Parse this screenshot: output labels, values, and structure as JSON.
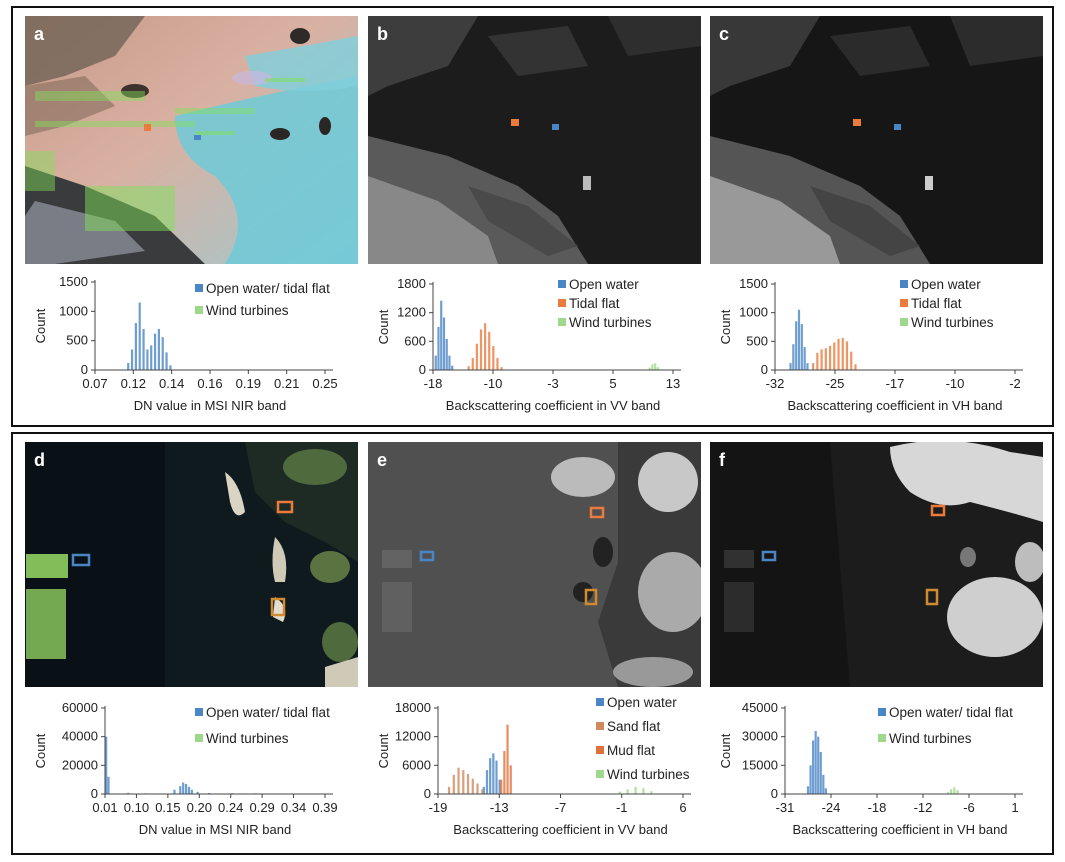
{
  "panels": {
    "a": {
      "letter": "a"
    },
    "b": {
      "letter": "b"
    },
    "c": {
      "letter": "c"
    },
    "d": {
      "letter": "d"
    },
    "e": {
      "letter": "e"
    },
    "f": {
      "letter": "f"
    }
  },
  "colors": {
    "open_water": "#4a86c5",
    "tidal_flat": "#ea7b3c",
    "sand_flat": "#d08a5c",
    "mud_flat": "#e0703a",
    "wind_turbines": "#9fd88a",
    "wind_turbines_dot": "#8fd060"
  },
  "chart_data": [
    {
      "id": "a",
      "type": "bar",
      "xlabel": "DN value in MSI NIR band",
      "ylabel": "Count",
      "xlim": [
        0.07,
        0.25
      ],
      "ylim": [
        0,
        1500
      ],
      "xticks": [
        "0.07",
        "0.12",
        "0.14",
        "0.16",
        "0.19",
        "0.21",
        "0.25"
      ],
      "yticks": [
        "0",
        "500",
        "1000",
        "1500"
      ],
      "series": [
        {
          "name": "Open water/ tidal flat",
          "color": "#4a86c5",
          "x": [
            0.096,
            0.099,
            0.102,
            0.105,
            0.108,
            0.111,
            0.114,
            0.117,
            0.12,
            0.123,
            0.126,
            0.129
          ],
          "values": [
            120,
            350,
            800,
            1150,
            700,
            350,
            420,
            620,
            700,
            560,
            300,
            80
          ]
        },
        {
          "name": "Wind turbines",
          "color": "#9fd88a",
          "x": [],
          "values": []
        }
      ]
    },
    {
      "id": "b",
      "type": "bar",
      "xlabel": "Backscattering coefficient in VV band",
      "ylabel": "Count",
      "xlim": [
        -18,
        17
      ],
      "ylim": [
        0,
        1800
      ],
      "xticks": [
        "-18",
        "-10",
        "-3",
        "5",
        "13"
      ],
      "yticks": [
        "0",
        "600",
        "1200",
        "1800"
      ],
      "series": [
        {
          "name": "Open water",
          "color": "#4a86c5",
          "x": [
            -17.6,
            -17.2,
            -16.8,
            -16.4,
            -16.0,
            -15.6,
            -15.2
          ],
          "values": [
            300,
            900,
            1450,
            1100,
            650,
            300,
            90
          ]
        },
        {
          "name": "Tidal flat",
          "color": "#ea7b3c",
          "x": [
            -12.8,
            -12.2,
            -11.6,
            -11.0,
            -10.4,
            -9.8,
            -9.2,
            -8.6,
            -8.0
          ],
          "values": [
            80,
            250,
            550,
            850,
            980,
            800,
            500,
            250,
            60
          ]
        },
        {
          "name": "Wind turbines",
          "color": "#9fd88a",
          "x": [
            13.6,
            14.0,
            14.4,
            14.8
          ],
          "values": [
            50,
            120,
            140,
            60
          ]
        }
      ]
    },
    {
      "id": "c",
      "type": "bar",
      "xlabel": "Backscattering coefficient in VH band",
      "ylabel": "Count",
      "xlim": [
        -32,
        2
      ],
      "ylim": [
        0,
        1500
      ],
      "xticks": [
        "-32",
        "-25",
        "-17",
        "-10",
        "-2"
      ],
      "yticks": [
        "0",
        "500",
        "1000",
        "1500"
      ],
      "series": [
        {
          "name": "Open water",
          "color": "#4a86c5",
          "x": [
            -29.8,
            -29.4,
            -29.0,
            -28.6,
            -28.2,
            -27.8,
            -27.4
          ],
          "values": [
            120,
            450,
            850,
            1050,
            800,
            400,
            120
          ]
        },
        {
          "name": "Tidal flat",
          "color": "#ea7b3c",
          "x": [
            -26.6,
            -26.0,
            -25.4,
            -24.8,
            -24.2,
            -23.6,
            -23.0,
            -22.4,
            -21.8,
            -21.2,
            -20.6
          ],
          "values": [
            120,
            300,
            360,
            380,
            420,
            480,
            540,
            560,
            500,
            320,
            100
          ]
        },
        {
          "name": "Wind turbines",
          "color": "#9fd88a",
          "x": [],
          "values": []
        }
      ]
    },
    {
      "id": "d",
      "type": "bar",
      "xlabel": "DN value in MSI NIR band",
      "ylabel": "Count",
      "xlim": [
        0.01,
        0.39
      ],
      "ylim": [
        0,
        60000
      ],
      "xticks": [
        "0.01",
        "0.10",
        "0.15",
        "0.20",
        "0.24",
        "0.29",
        "0.34",
        "0.39"
      ],
      "yticks": [
        "0",
        "20000",
        "40000",
        "60000"
      ],
      "series": [
        {
          "name": "Open water/ tidal flat",
          "color": "#4a86c5",
          "x": [
            0.012,
            0.016,
            0.05,
            0.08,
            0.13,
            0.14,
            0.145,
            0.15,
            0.155,
            0.16,
            0.17,
            0.19,
            0.23,
            0.27
          ],
          "values": [
            40000,
            12000,
            800,
            500,
            3000,
            5500,
            8000,
            7000,
            5000,
            3000,
            1500,
            700,
            600,
            500
          ]
        },
        {
          "name": "Wind turbines",
          "color": "#9fd88a",
          "x": [
            0.21,
            0.25,
            0.29,
            0.33
          ],
          "values": [
            300,
            500,
            400,
            300
          ]
        }
      ]
    },
    {
      "id": "e",
      "type": "bar",
      "xlabel": "Backscattering coefficient in VV band",
      "ylabel": "Count",
      "xlim": [
        -19,
        12
      ],
      "ylim": [
        0,
        18000
      ],
      "xticks": [
        "-19",
        "-13",
        "-7",
        "-1",
        "6"
      ],
      "yticks": [
        "0",
        "6000",
        "12000",
        "18000"
      ],
      "series": [
        {
          "name": "Open water",
          "color": "#4a86c5",
          "x": [
            -13.2,
            -12.8,
            -12.4,
            -12.0,
            -11.6,
            -11.2
          ],
          "values": [
            1500,
            5000,
            7500,
            8500,
            7000,
            3000
          ]
        },
        {
          "name": "Sand flat",
          "color": "#d08a5c",
          "x": [
            -17.6,
            -17.0,
            -16.4,
            -15.8,
            -15.2,
            -14.6,
            -14.0,
            -13.4
          ],
          "values": [
            1500,
            4000,
            5500,
            5000,
            4200,
            3200,
            2200,
            1000
          ]
        },
        {
          "name": "Mud flat",
          "color": "#e0703a",
          "x": [
            -11.0,
            -10.6,
            -10.2,
            -9.8
          ],
          "values": [
            3000,
            9000,
            14500,
            6000
          ]
        },
        {
          "name": "Wind turbines",
          "color": "#9fd88a",
          "x": [
            4.0,
            5.0,
            6.0,
            7.0,
            8.0
          ],
          "values": [
            500,
            1000,
            1500,
            1200,
            600
          ]
        }
      ]
    },
    {
      "id": "f",
      "type": "bar",
      "xlabel": "Backscattering coefficient in VH band",
      "ylabel": "Count",
      "xlim": [
        -31,
        5
      ],
      "ylim": [
        0,
        45000
      ],
      "xticks": [
        "-31",
        "-24",
        "-18",
        "-12",
        "-6",
        "1"
      ],
      "yticks": [
        "0",
        "15000",
        "30000",
        "45000"
      ],
      "series": [
        {
          "name": "Open water/ tidal flat",
          "color": "#4a86c5",
          "x": [
            -27.4,
            -27.0,
            -26.6,
            -26.2,
            -25.8,
            -25.4,
            -25.0,
            -24.6
          ],
          "values": [
            4000,
            15000,
            28000,
            33000,
            30000,
            22000,
            10000,
            3000
          ]
        },
        {
          "name": "Wind turbines",
          "color": "#9fd88a",
          "x": [
            -5.5,
            -5.0,
            -4.5,
            -4.0
          ],
          "values": [
            1000,
            2500,
            3500,
            2000
          ]
        }
      ]
    }
  ]
}
